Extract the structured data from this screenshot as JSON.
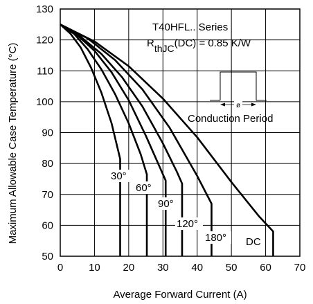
{
  "chart_data": {
    "type": "line",
    "title": "",
    "xlabel": "Average Forward Current (A)",
    "ylabel": "Maximum Allowable Case Temperature (°C)",
    "xlim": [
      0,
      70
    ],
    "ylim": [
      50,
      130
    ],
    "x_ticks": [
      "0",
      "10",
      "20",
      "30",
      "40",
      "50",
      "60",
      "70"
    ],
    "y_ticks": [
      "50",
      "60",
      "70",
      "80",
      "90",
      "100",
      "110",
      "120",
      "130"
    ],
    "x_tick_values": [
      0,
      10,
      20,
      30,
      40,
      50,
      60,
      70
    ],
    "y_tick_values": [
      50,
      60,
      70,
      80,
      90,
      100,
      110,
      120,
      130
    ],
    "grid": true,
    "annotations": {
      "series_line": "T40HFL.. Series",
      "rth_main": "R",
      "rth_sub": "thJC",
      "rth_rest": "(DC) = 0.85 K/W",
      "phi": "ø",
      "conduction": "Conduction Period"
    },
    "series": [
      {
        "label": "30°",
        "points": [
          [
            0,
            125
          ],
          [
            3,
            122
          ],
          [
            6,
            117.5
          ],
          [
            9,
            111
          ],
          [
            12,
            103
          ],
          [
            15,
            93
          ],
          [
            17.5,
            81.5
          ],
          [
            17.5,
            50
          ]
        ]
      },
      {
        "label": "60°",
        "points": [
          [
            0,
            125
          ],
          [
            4,
            122
          ],
          [
            8,
            117
          ],
          [
            12,
            110.5
          ],
          [
            16,
            102.5
          ],
          [
            20,
            93
          ],
          [
            23.5,
            83
          ],
          [
            25.3,
            76.5
          ],
          [
            25.3,
            50
          ]
        ]
      },
      {
        "label": "90°",
        "points": [
          [
            0,
            125
          ],
          [
            5,
            121.5
          ],
          [
            10,
            116.5
          ],
          [
            15,
            109.5
          ],
          [
            20,
            100.5
          ],
          [
            25,
            89
          ],
          [
            29,
            79
          ],
          [
            30.8,
            74.5
          ],
          [
            30.8,
            50
          ]
        ]
      },
      {
        "label": "120°",
        "points": [
          [
            0,
            125
          ],
          [
            6,
            121
          ],
          [
            12,
            115.5
          ],
          [
            18,
            108
          ],
          [
            24,
            98.5
          ],
          [
            30,
            86.5
          ],
          [
            34,
            77.5
          ],
          [
            35.6,
            73.5
          ],
          [
            35.6,
            50
          ]
        ]
      },
      {
        "label": "180°",
        "points": [
          [
            0,
            125
          ],
          [
            8,
            120.5
          ],
          [
            16,
            113.5
          ],
          [
            24,
            104
          ],
          [
            32,
            91.5
          ],
          [
            40,
            76
          ],
          [
            44.2,
            67
          ],
          [
            44.2,
            50
          ]
        ]
      },
      {
        "label": "DC",
        "points": [
          [
            0,
            125
          ],
          [
            10,
            119.5
          ],
          [
            20,
            111.5
          ],
          [
            30,
            101
          ],
          [
            40,
            88.5
          ],
          [
            50,
            74
          ],
          [
            58,
            63
          ],
          [
            62.2,
            58
          ],
          [
            62.2,
            50
          ]
        ]
      }
    ],
    "curve_labels": [
      {
        "text": "30°"
      },
      {
        "text": "60°"
      },
      {
        "text": "90°"
      },
      {
        "text": "120°"
      },
      {
        "text": "180°"
      },
      {
        "text": "DC"
      }
    ]
  }
}
